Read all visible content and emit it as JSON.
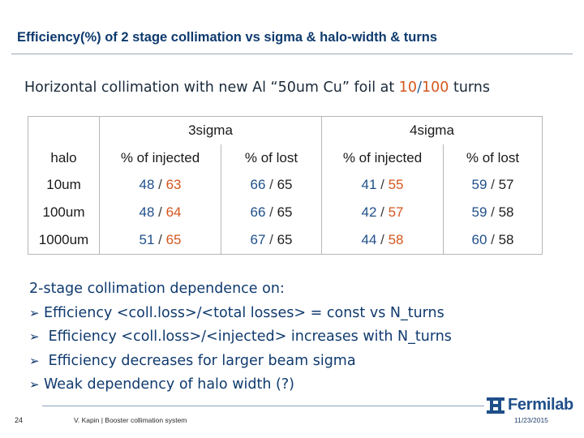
{
  "slide": {
    "title": "Efficiency(%) of 2 stage collimation vs sigma & halo-width & turns",
    "subtitle": {
      "prefix": "Horizontal collimation with new Al “50um Cu” foil at ",
      "turns_a": "10",
      "slash": "/",
      "turns_b": "100",
      "suffix": " turns"
    }
  },
  "table": {
    "group_headers": [
      "3sigma",
      "4sigma"
    ],
    "column_headers": [
      "halo",
      "% of injected",
      "% of lost",
      "% of injected",
      "% of lost"
    ],
    "rows": [
      {
        "halo": "10um",
        "cells": [
          [
            "48",
            "63"
          ],
          [
            "66",
            "65"
          ],
          [
            "41",
            "55"
          ],
          [
            "59",
            "57"
          ]
        ]
      },
      {
        "halo": "100um",
        "cells": [
          [
            "48",
            "64"
          ],
          [
            "66",
            "65"
          ],
          [
            "42",
            "57"
          ],
          [
            "59",
            "58"
          ]
        ]
      },
      {
        "halo": "1000um",
        "cells": [
          [
            "51",
            "65"
          ],
          [
            "67",
            "65"
          ],
          [
            "44",
            "58"
          ],
          [
            "60",
            "58"
          ]
        ]
      }
    ],
    "separator": " / "
  },
  "notes": {
    "heading": "2-stage collimation dependence on:",
    "bullets": [
      "Efficiency <coll.loss>/<total losses> = const vs N_turns",
      " Efficiency <coll.loss>/<injected> increases with N_turns",
      " Efficiency decreases for larger beam sigma",
      "Weak dependency of halo width (?)"
    ]
  },
  "footer": {
    "page_number": "24",
    "author": "V. Kapin | Booster collimation system",
    "date": "11/23/2015",
    "logo_text": "Fermilab",
    "logo_icon": "fermilab-logo-icon"
  },
  "colors": {
    "title": "#0e3a6e",
    "accent_orange": "#d4571f",
    "accent_blue": "#1f4f8a"
  }
}
